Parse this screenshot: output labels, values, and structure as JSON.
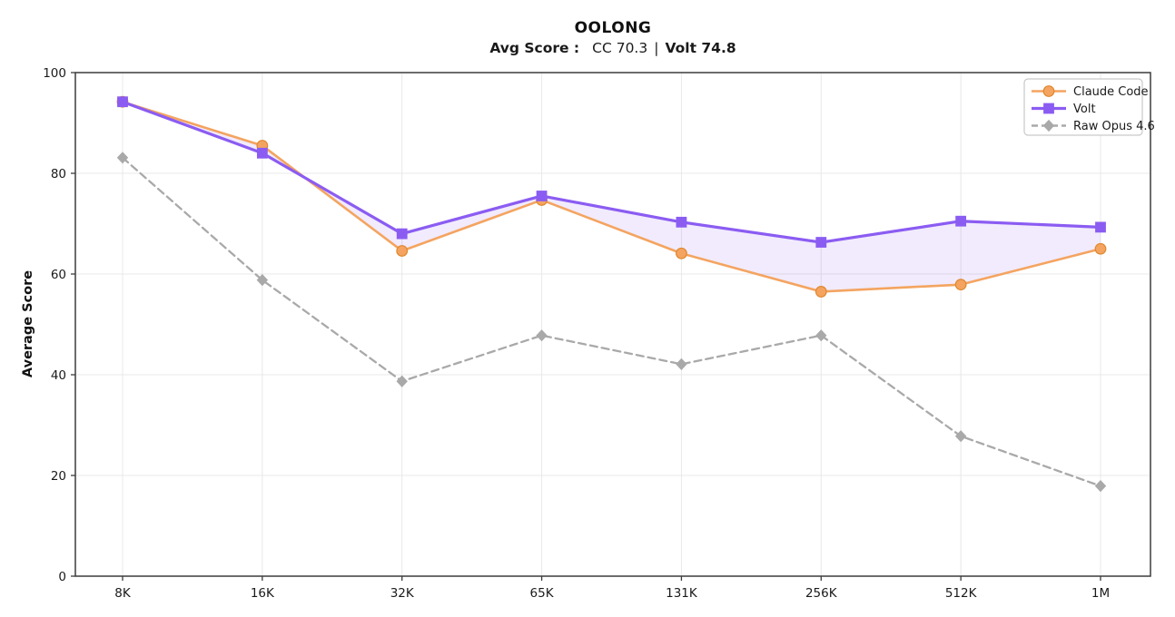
{
  "title": "OOLONG",
  "subtitle": {
    "label": "Avg Score :",
    "cc_value": "CC 70.3",
    "separator": "|",
    "volt_value": "Volt 74.8"
  },
  "chart_data": {
    "type": "line",
    "title": "OOLONG",
    "subtitle": "Avg Score :  CC 70.3  |  Volt 74.8",
    "xlabel": "",
    "ylabel": "Average Score",
    "ylim": [
      0,
      100
    ],
    "yticks": [
      0,
      20,
      40,
      60,
      80,
      100
    ],
    "categories": [
      "8K",
      "16K",
      "32K",
      "65K",
      "131K",
      "256K",
      "512K",
      "1M"
    ],
    "series": [
      {
        "name": "Claude Code",
        "color": "#F4A460",
        "marker": "circle",
        "line": "solid",
        "values": [
          94.2,
          85.5,
          64.6,
          74.7,
          64.1,
          56.5,
          57.9,
          65.0
        ]
      },
      {
        "name": "Volt",
        "color": "#8B5CF2",
        "marker": "square",
        "line": "solid",
        "values": [
          94.2,
          84.0,
          68.0,
          75.5,
          70.3,
          66.3,
          70.5,
          69.3
        ]
      },
      {
        "name": "Raw Opus 4.6",
        "color": "#A9A9A9",
        "marker": "diamond",
        "line": "dashed",
        "values": [
          83.1,
          58.8,
          38.7,
          47.8,
          42.1,
          47.8,
          27.8,
          17.9
        ]
      }
    ],
    "fill_between": {
      "between": [
        "Claude Code",
        "Volt"
      ],
      "color": "#8B5CF2",
      "opacity": 0.12
    },
    "legend_position": "upper right",
    "legend_labels": [
      "Claude Code",
      "Volt",
      "Raw Opus 4.6"
    ],
    "grid": true,
    "avg_scores": {
      "cc": 70.3,
      "volt": 74.8
    },
    "colors": {
      "grid": "#e8e8e8",
      "spine": "#3c3c3c",
      "tick_text": "#1a1a1a",
      "legend_border": "#c9c9c9",
      "legend_bg": "#ffffff",
      "circle_edge": "#e0882f"
    }
  }
}
